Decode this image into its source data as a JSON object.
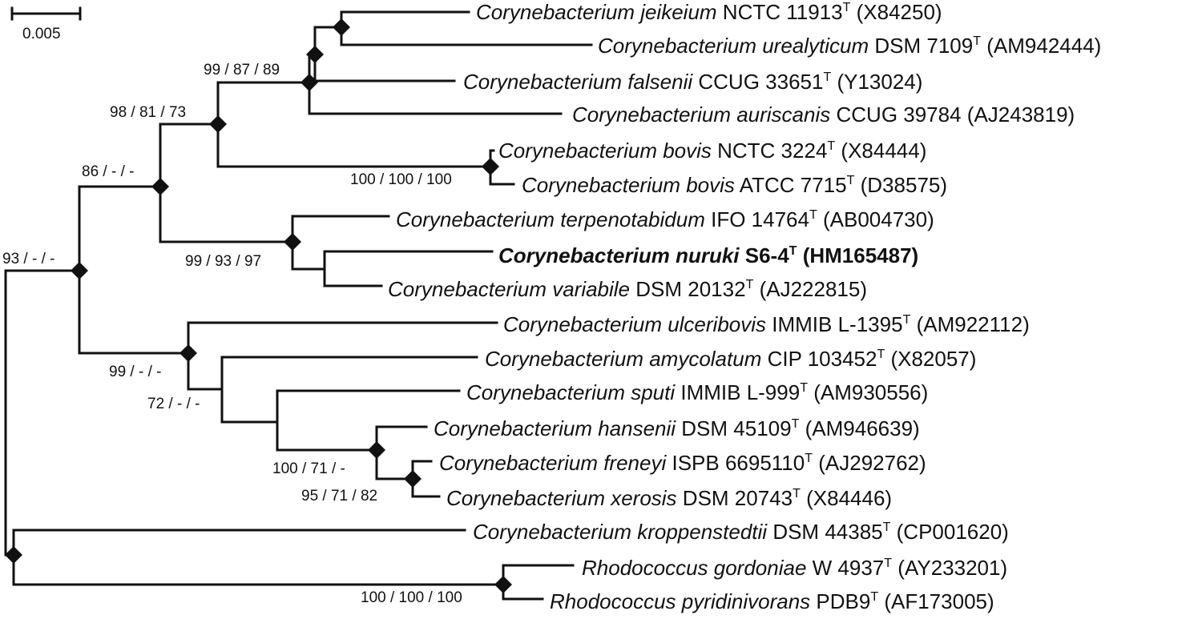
{
  "scale_bar": {
    "label": "0.005"
  },
  "taxa": [
    {
      "species": "Corynebacterium jeikeium",
      "strain": "NCTC 11913",
      "type": "T",
      "accession": "(X84250)"
    },
    {
      "species": "Corynebacterium urealyticum",
      "strain": "DSM 7109",
      "type": "T",
      "accession": "(AM942444)"
    },
    {
      "species": "Corynebacterium falsenii",
      "strain": "CCUG 33651",
      "type": "T",
      "accession": "(Y13024)"
    },
    {
      "species": "Corynebacterium auriscanis",
      "strain": "CCUG 39784",
      "type": "",
      "accession": "(AJ243819)"
    },
    {
      "species": "Corynebacterium bovis",
      "strain": "NCTC 3224",
      "type": "T",
      "accession": "(X84444)"
    },
    {
      "species": "Corynebacterium bovis",
      "strain": "ATCC 7715",
      "type": "T",
      "accession": "(D38575)"
    },
    {
      "species": "Corynebacterium terpenotabidum",
      "strain": "IFO 14764",
      "type": "T",
      "accession": "(AB004730)"
    },
    {
      "species": "Corynebacterium nuruki",
      "strain": "S6-4",
      "type": "T",
      "accession": "(HM165487)",
      "bold": true
    },
    {
      "species": "Corynebacterium variabile",
      "strain": "DSM 20132",
      "type": "T",
      "accession": "(AJ222815)"
    },
    {
      "species": "Corynebacterium ulceribovis",
      "strain": "IMMIB L-1395",
      "type": "T",
      "accession": "(AM922112)"
    },
    {
      "species": "Corynebacterium amycolatum",
      "strain": "CIP 103452",
      "type": "T",
      "accession": "(X82057)"
    },
    {
      "species": "Corynebacterium sputi",
      "strain": "IMMIB L-999",
      "type": "T",
      "accession": "(AM930556)"
    },
    {
      "species": "Corynebacterium hansenii",
      "strain": "DSM 45109",
      "type": "T",
      "accession": "(AM946639)"
    },
    {
      "species": "Corynebacterium freneyi",
      "strain": "ISPB 6695110",
      "type": "T",
      "accession": "(AJ292762)"
    },
    {
      "species": "Corynebacterium xerosis",
      "strain": "DSM 20743",
      "type": "T",
      "accession": "(X84446)"
    },
    {
      "species": "Corynebacterium kroppenstedtii",
      "strain": "DSM 44385",
      "type": "T",
      "accession": "(CP001620)"
    },
    {
      "species": "Rhodococcus gordoniae",
      "strain": "W 4937",
      "type": "T",
      "accession": "(AY233201)"
    },
    {
      "species": "Rhodococcus pyridinivorans",
      "strain": "PDB9",
      "type": "T",
      "accession": "(AF173005)"
    }
  ],
  "support_values": {
    "jeikeium_urealyticum_falsenii": "99 / 87 / 89",
    "jeikeium_to_bovis": "98 / 81 / 73",
    "bovis_pair": "100 / 100 / 100",
    "jeikeium_to_variabile": "86 / - / -",
    "terpenotabidum_clade": "99 / 93 / 97",
    "corynebacterium_root": "93 / - / -",
    "ulceribovis_clade": "99 / - / -",
    "amycolatum_clade": "72 / - / -",
    "hansenii_clade": "100 / 71 / -",
    "freneyi_xerosis": "95 / 71 / 82",
    "rhodococcus_pair": "100 / 100 / 100"
  }
}
